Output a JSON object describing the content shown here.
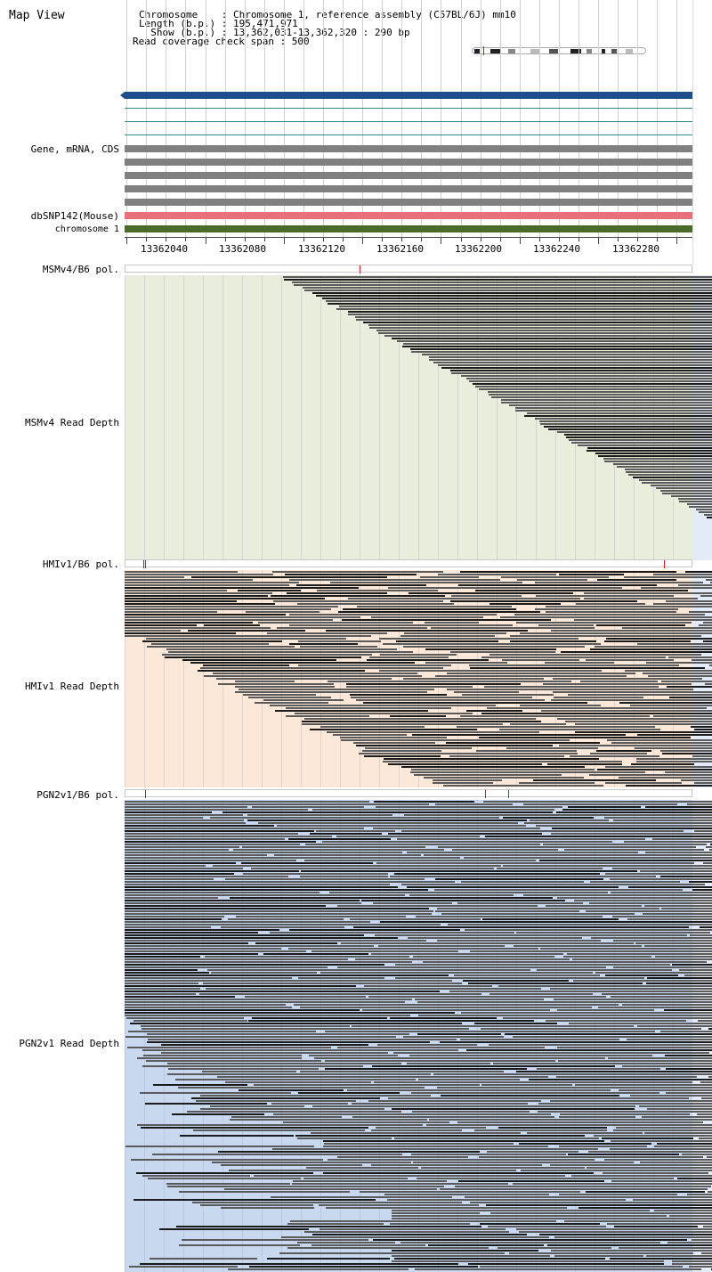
{
  "header": {
    "title": "Map View",
    "info_lines": [
      "Chromosome    : Chromosome 1, reference assembly (C57BL/6J) mm10",
      "Length (b.p.) : 195,471,971",
      "  Show (b.p.) : 13,362,031-13,362,320 : 290 bp",
      "Read coverage check span : 500"
    ]
  },
  "tracks": {
    "gene_label": "Gene, mRNA, CDS",
    "snp_label": "dbSNP142(Mouse)",
    "chrom_label": "chromosome 1",
    "axis_ticks": [
      "13362040",
      "13362080",
      "13362120",
      "13362160",
      "13362200",
      "13362240",
      "13362280"
    ],
    "colors": {
      "blue_bar": "#1f4e8c",
      "teal_line": "#2e8b8b",
      "gray_bar": "#808080",
      "snp_bar": "#e8707a",
      "chrom_bar": "#4a6b2a"
    }
  },
  "panels": [
    {
      "pol_label": "MSMv4/B6 pol.",
      "depth_label": "MSMv4 Read Depth",
      "bg": "#e9eedc",
      "snp_positions": [
        13362150
      ],
      "pattern": "diagonal"
    },
    {
      "pol_label": "HMIv1/B6 pol.",
      "depth_label": "HMIv1 Read Depth",
      "bg": "#fce8d8",
      "snp_positions": [
        13362040,
        13362041,
        13362305
      ],
      "pattern": "mixed"
    },
    {
      "pol_label": "PGN2v1/B6 pol.",
      "depth_label": "PGN2v1 Read Depth",
      "bg": "#c8d8ee",
      "snp_positions": [
        13362041,
        13362214,
        13362226
      ],
      "pattern": "dense"
    }
  ],
  "view": {
    "start": 13362031,
    "end": 13362320
  }
}
